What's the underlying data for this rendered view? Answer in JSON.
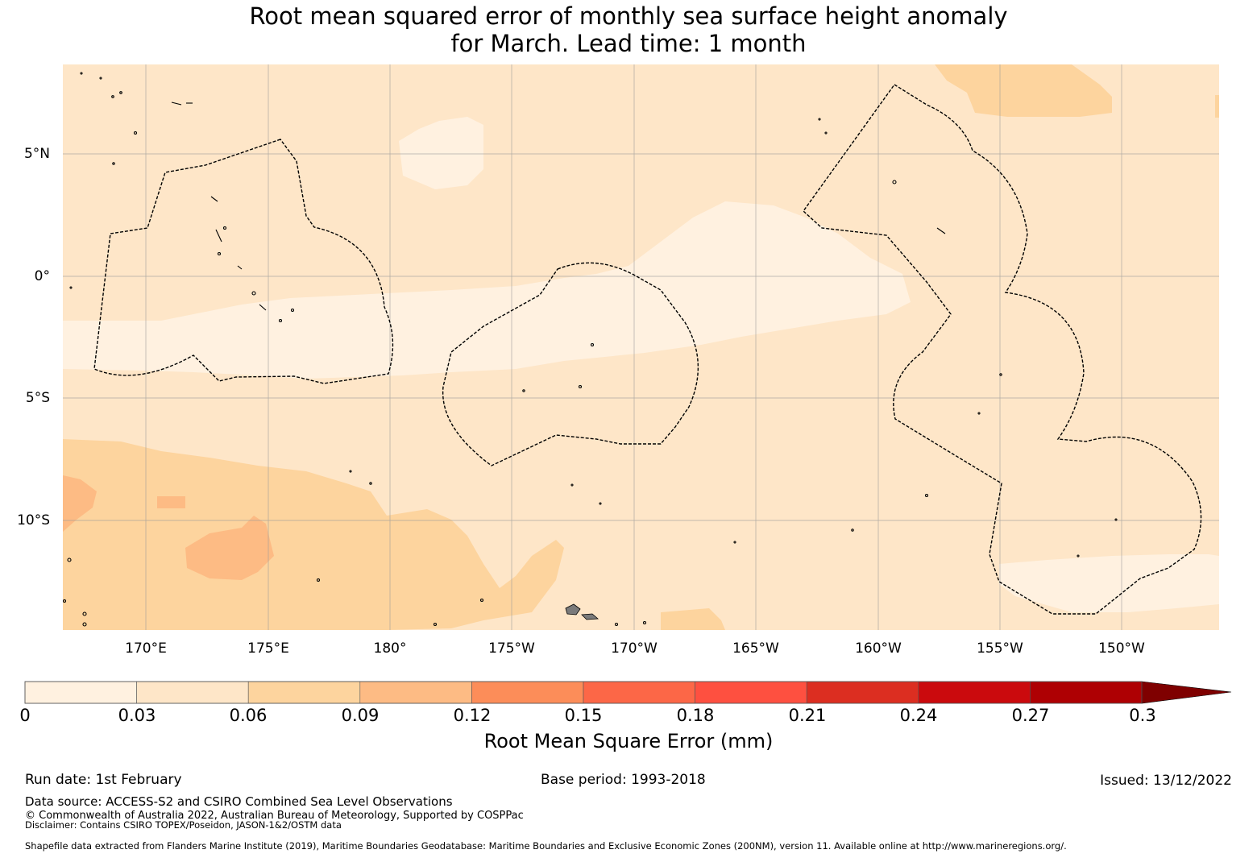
{
  "title_line1": "Root mean squared error of monthly sea surface height anomaly",
  "title_line2": "for March. Lead time: 1 month",
  "map": {
    "lat_labels": [
      "5°N",
      "0°",
      "5°S",
      "10°S"
    ],
    "lon_labels": [
      "170°E",
      "175°E",
      "180°",
      "175°W",
      "170°W",
      "165°W",
      "160°W",
      "155°W",
      "150°W"
    ],
    "colors": {
      "bin_0_003": "#fff1e0",
      "bin_003_006": "#fee6c8",
      "bin_006_009": "#fdd49e",
      "bin_009_012": "#fdbb84",
      "coastline": "#000000",
      "eez_boundary": "#000000",
      "gridline": "#9a9a9a"
    }
  },
  "colorbar": {
    "tick_labels": [
      "0",
      "0.03",
      "0.06",
      "0.09",
      "0.12",
      "0.15",
      "0.18",
      "0.21",
      "0.24",
      "0.27",
      "0.3"
    ],
    "colors": [
      "#fff1e0",
      "#fee6c8",
      "#fdd49e",
      "#fdbb84",
      "#fc8d59",
      "#fc6747",
      "#fe5040",
      "#dc2e21",
      "#cb0a0d",
      "#ae0003"
    ],
    "extend_color": "#7f0000",
    "title": "Root Mean Square Error (mm)"
  },
  "footer": {
    "run_date": "Run date: 1st February",
    "base_period": "Base period: 1993-2018",
    "issued": "Issued: 13/12/2022",
    "data_source": "Data source: ACCESS-S2 and CSIRO Combined Sea Level Observations",
    "copyright": "© Commonwealth of Australia 2022, Australian Bureau of Meteorology, Supported by COSPPac",
    "disclaimer": "Disclaimer: Contains CSIRO TOPEX/Poseidon, JASON-1&2/OSTM data",
    "shapefile": "Shapefile data extracted from Flanders Marine Institute (2019), Maritime Boundaries Geodatabase: Maritime Boundaries and Exclusive Economic Zones (200NM), version 11. Available online at http://www.marineregions.org/."
  }
}
